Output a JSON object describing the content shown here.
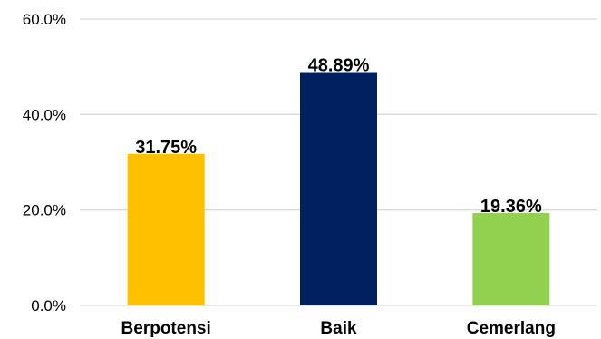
{
  "chart_data": {
    "type": "bar",
    "categories": [
      "Berpotensi",
      "Baik",
      "Cemerlang"
    ],
    "values": [
      31.75,
      48.89,
      19.36
    ],
    "data_labels": [
      "31.75%",
      "48.89%",
      "19.36%"
    ],
    "colors": [
      "#FFC000",
      "#002060",
      "#92D050"
    ],
    "ylim": [
      0,
      60
    ],
    "yticks": [
      0,
      20,
      40,
      60
    ],
    "ytick_labels": [
      "0.0%",
      "20.0%",
      "40.0%",
      "60.0%"
    ],
    "grid": true,
    "legend": "none"
  }
}
